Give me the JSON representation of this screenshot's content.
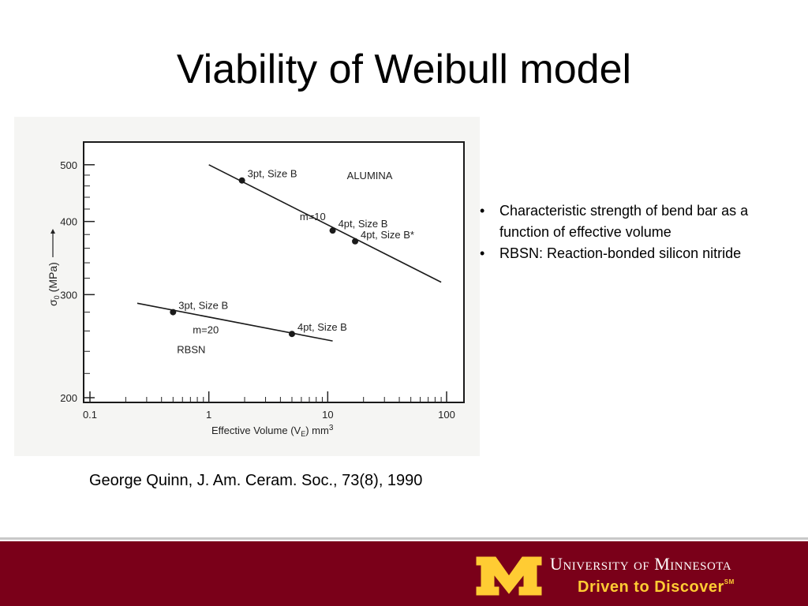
{
  "slide": {
    "title": "Viability of Weibull model",
    "bullets": [
      "Characteristic strength of bend bar as a function of effective volume",
      "RBSN: Reaction-bonded silicon nitride"
    ],
    "citation": "George Quinn, J. Am. Ceram. Soc., 73(8), 1990"
  },
  "footer": {
    "university": "University of Minnesota",
    "tagline": "Driven to Discover",
    "tagline_mark": "SM",
    "colors": {
      "maroon": "#7a0019",
      "gold": "#ffcc33"
    }
  },
  "chart_data": {
    "type": "scatter",
    "x_scale": "log",
    "y_scale": "log",
    "xlabel_main": "Effective Volume (V",
    "xlabel_sub": "E",
    "xlabel_tail": ") mm",
    "xlabel_sup": "3",
    "ylabel_sigma": "σ",
    "ylabel_sub": "0",
    "ylabel_unit": "(MPa)",
    "xlim": [
      0.1,
      100
    ],
    "ylim": [
      200,
      540
    ],
    "x_ticks": [
      {
        "value": 0.1,
        "label": "0.1"
      },
      {
        "value": 1,
        "label": "1"
      },
      {
        "value": 10,
        "label": "10"
      },
      {
        "value": 100,
        "label": "100"
      }
    ],
    "y_ticks": [
      {
        "value": 200,
        "label": "200"
      },
      {
        "value": 300,
        "label": "300"
      },
      {
        "value": 400,
        "label": "400"
      },
      {
        "value": 500,
        "label": "500"
      }
    ],
    "series": [
      {
        "name": "ALUMINA",
        "slope_label": "m=10",
        "line": [
          [
            1,
            500
          ],
          [
            90,
            315
          ]
        ],
        "points": [
          {
            "x": 1.9,
            "y": 470,
            "label": "3pt, Size B"
          },
          {
            "x": 11,
            "y": 386,
            "label": "4pt, Size B"
          },
          {
            "x": 17,
            "y": 370,
            "label": "4pt, Size B*"
          }
        ]
      },
      {
        "name": "RBSN",
        "slope_label": "m=20",
        "line": [
          [
            0.25,
            290
          ],
          [
            11,
            250
          ]
        ],
        "points": [
          {
            "x": 0.5,
            "y": 280,
            "label": "3pt, Size B"
          },
          {
            "x": 5,
            "y": 257,
            "label": "4pt, Size B"
          }
        ]
      }
    ]
  }
}
